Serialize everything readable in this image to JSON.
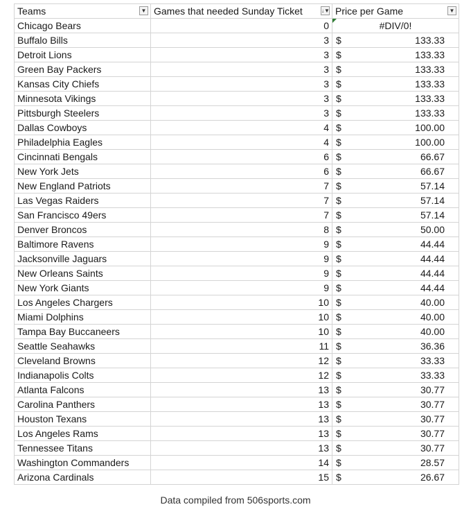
{
  "table": {
    "headers": {
      "team": "Teams",
      "games": "Games that needed Sunday Ticket",
      "price": "Price per Game"
    },
    "filter_icons": {
      "team": "▼",
      "games": "↓▼",
      "price": "▼"
    },
    "currency": "$",
    "rows": [
      {
        "team": "Chicago Bears",
        "games": "0",
        "price": "#DIV/0!",
        "error": true
      },
      {
        "team": "Buffalo Bills",
        "games": "3",
        "price": "133.33"
      },
      {
        "team": "Detroit Lions",
        "games": "3",
        "price": "133.33"
      },
      {
        "team": "Green Bay Packers",
        "games": "3",
        "price": "133.33"
      },
      {
        "team": "Kansas City Chiefs",
        "games": "3",
        "price": "133.33"
      },
      {
        "team": "Minnesota Vikings",
        "games": "3",
        "price": "133.33"
      },
      {
        "team": "Pittsburgh Steelers",
        "games": "3",
        "price": "133.33"
      },
      {
        "team": "Dallas Cowboys",
        "games": "4",
        "price": "100.00"
      },
      {
        "team": "Philadelphia Eagles",
        "games": "4",
        "price": "100.00"
      },
      {
        "team": "Cincinnati Bengals",
        "games": "6",
        "price": "66.67"
      },
      {
        "team": "New York Jets",
        "games": "6",
        "price": "66.67"
      },
      {
        "team": "New England Patriots",
        "games": "7",
        "price": "57.14"
      },
      {
        "team": "Las Vegas Raiders",
        "games": "7",
        "price": "57.14"
      },
      {
        "team": "San Francisco 49ers",
        "games": "7",
        "price": "57.14"
      },
      {
        "team": "Denver Broncos",
        "games": "8",
        "price": "50.00"
      },
      {
        "team": "Baltimore Ravens",
        "games": "9",
        "price": "44.44"
      },
      {
        "team": "Jacksonville Jaguars",
        "games": "9",
        "price": "44.44"
      },
      {
        "team": "New Orleans Saints",
        "games": "9",
        "price": "44.44"
      },
      {
        "team": "New York Giants",
        "games": "9",
        "price": "44.44"
      },
      {
        "team": "Los Angeles Chargers",
        "games": "10",
        "price": "40.00"
      },
      {
        "team": "Miami Dolphins",
        "games": "10",
        "price": "40.00"
      },
      {
        "team": "Tampa Bay Buccaneers",
        "games": "10",
        "price": "40.00"
      },
      {
        "team": "Seattle Seahawks",
        "games": "11",
        "price": "36.36"
      },
      {
        "team": "Cleveland Browns",
        "games": "12",
        "price": "33.33"
      },
      {
        "team": "Indianapolis Colts",
        "games": "12",
        "price": "33.33"
      },
      {
        "team": "Atlanta Falcons",
        "games": "13",
        "price": "30.77"
      },
      {
        "team": "Carolina Panthers",
        "games": "13",
        "price": "30.77"
      },
      {
        "team": "Houston Texans",
        "games": "13",
        "price": "30.77"
      },
      {
        "team": "Los Angeles Rams",
        "games": "13",
        "price": "30.77"
      },
      {
        "team": "Tennessee Titans",
        "games": "13",
        "price": "30.77"
      },
      {
        "team": "Washington Commanders",
        "games": "14",
        "price": "28.57"
      },
      {
        "team": "Arizona Cardinals",
        "games": "15",
        "price": "26.67"
      }
    ]
  },
  "caption": "Data compiled from 506sports.com",
  "colors": {
    "grid": "#d4d4d4",
    "error_flag": "#2e7d32"
  }
}
